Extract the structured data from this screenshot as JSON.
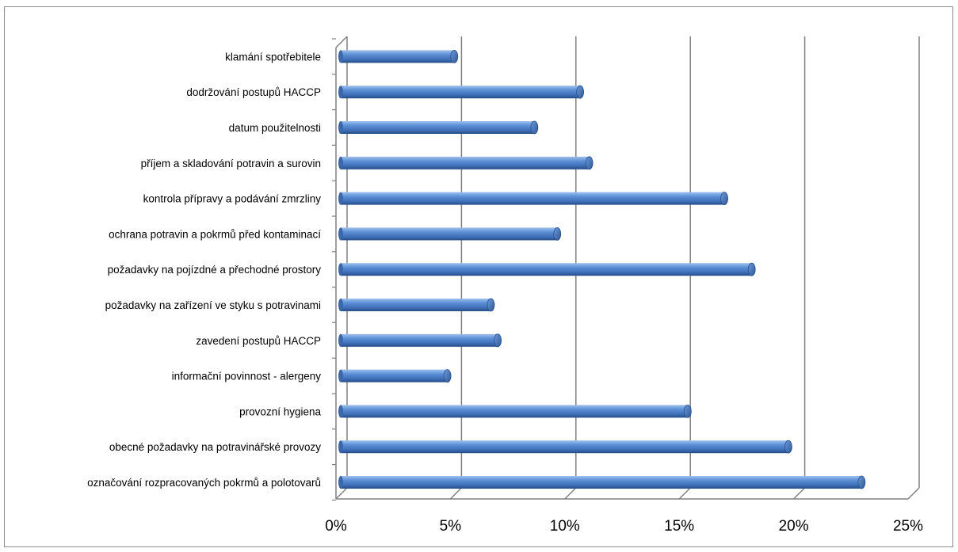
{
  "chart_data": {
    "type": "bar",
    "orientation": "horizontal",
    "style": "3d-cylinder",
    "categories": [
      "klamání spotřebitele",
      "dodržování postupů HACCP",
      "datum použitelnosti",
      "příjem a skladování potravin a surovin",
      "kontrola přípravy a podávání zmrzliny",
      "ochrana potravin a pokrmů před kontaminací",
      "požadavky na pojízdné a přechodné prostory",
      "požadavky na zařízení ve styku s potravinami",
      "zavedení postupů HACCP",
      "informační povinnost - alergeny",
      "provozní hygiena",
      "obecné požadavky na potravinářské provozy",
      "označování rozpracovaných pokrmů a polotovarů"
    ],
    "values": [
      5.1,
      10.6,
      8.6,
      11.0,
      16.9,
      9.6,
      18.1,
      6.7,
      7.0,
      4.8,
      15.3,
      19.7,
      22.9
    ],
    "xlim": [
      0,
      25
    ],
    "xticks": [
      "0%",
      "5%",
      "10%",
      "15%",
      "20%",
      "25%"
    ],
    "grid": true,
    "color": "#4a7ebb",
    "title": "",
    "xlabel": "",
    "ylabel": ""
  }
}
